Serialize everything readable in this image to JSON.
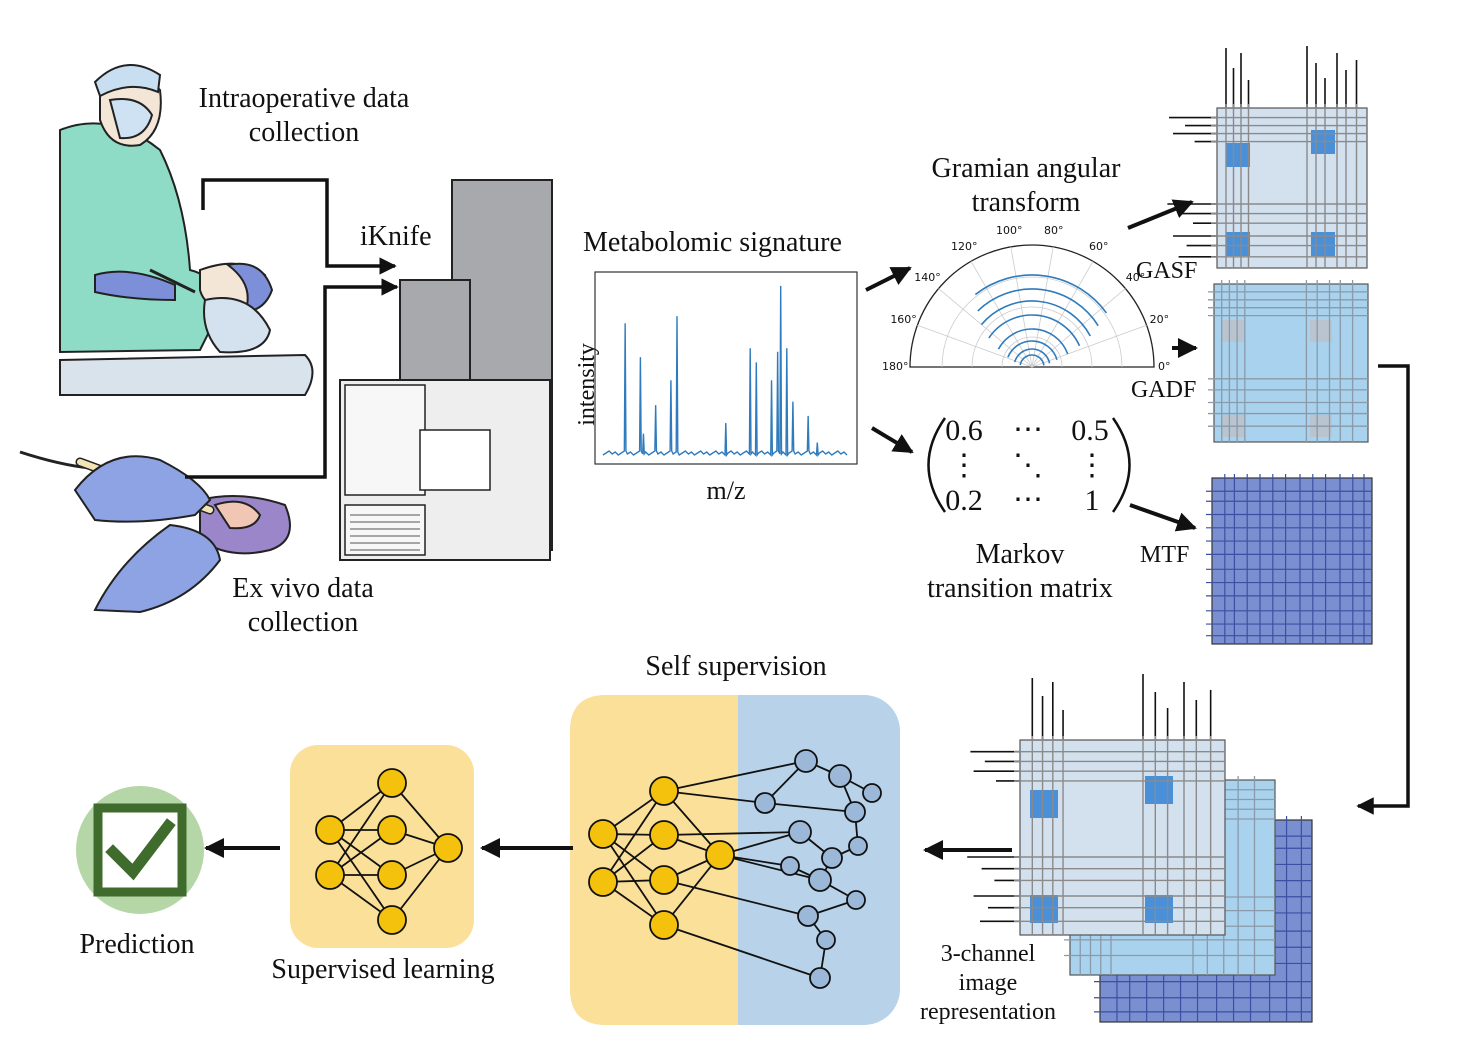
{
  "labels": {
    "intraoperative": "Intraoperative data\ncollection",
    "exvivo": "Ex vivo data\ncollection",
    "iknife": "iKnife",
    "metabolomic": "Metabolomic signature",
    "ylabel": "intensity",
    "xlabel": "m/z",
    "gramian": "Gramian angular\ntransform",
    "markov": "Markov\ntransition matrix",
    "gasf": "GASF",
    "gadf": "GADF",
    "mtf": "MTF",
    "three_channel": "3-channel\nimage\nrepresentation",
    "self_supervision": "Self supervision",
    "supervised": "Supervised learning",
    "prediction": "Prediction"
  },
  "polar_ticks": [
    "0°",
    "20°",
    "40°",
    "60°",
    "80°",
    "100°",
    "120°",
    "140°",
    "160°",
    "180°"
  ],
  "matrix": {
    "top_left": "0.6",
    "top_mid": "⋯",
    "top_right": "0.5",
    "mid_left": "⋮",
    "mid_mid": "⋱",
    "mid_right": "⋮",
    "bot_left": "0.2",
    "bot_mid": "⋯",
    "bot_right": "1"
  },
  "colors": {
    "gasf_fill": "#d3e0ee",
    "gadf_fill": "#a9d2ee",
    "mtf_fill": "#7a8fd0",
    "spectrum": "#2f7bbd",
    "yellow_node": "#f4c20d",
    "blue_node": "#9bb8d8",
    "yellow_panel": "#fbe09a",
    "blue_panel": "#b8d2ea",
    "check_circle": "#b5d6a7",
    "check_green": "#3f6b2c"
  }
}
